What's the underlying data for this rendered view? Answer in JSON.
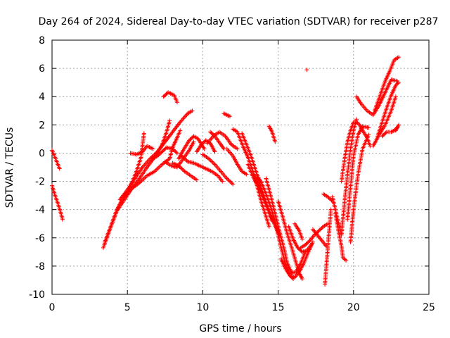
{
  "chart_data": {
    "type": "scatter",
    "title": "Day 264 of 2024, Sidereal Day-to-day VTEC variation (SDTVAR) for receiver p287",
    "xlabel": "GPS time / hours",
    "ylabel": "SDTVAR / TECUs",
    "xlim": [
      0,
      25
    ],
    "ylim": [
      -10,
      8
    ],
    "xticks": [
      0,
      5,
      10,
      15,
      20,
      25
    ],
    "yticks": [
      -10,
      -8,
      -6,
      -4,
      -2,
      0,
      2,
      4,
      6,
      8
    ],
    "grid": true,
    "marker": "+",
    "color": "#ff0000",
    "tracks": [
      {
        "x": [
          0.0,
          0.2,
          0.5
        ],
        "y": [
          0.2,
          -0.3,
          -1.1
        ]
      },
      {
        "x": [
          0.0,
          0.2,
          0.4,
          0.6,
          0.7
        ],
        "y": [
          -2.3,
          -3.0,
          -3.6,
          -4.3,
          -4.7
        ]
      },
      {
        "x": [
          3.4,
          3.7,
          4.0,
          4.3,
          4.6,
          5.0,
          5.3,
          5.6,
          5.9,
          6.1
        ],
        "y": [
          -6.7,
          -5.8,
          -4.9,
          -4.0,
          -3.4,
          -2.8,
          -2.1,
          -1.3,
          -0.3,
          1.4
        ]
      },
      {
        "x": [
          3.5,
          3.9,
          4.3,
          4.8,
          5.3,
          5.8,
          6.3,
          6.8,
          7.3,
          7.6,
          7.8
        ],
        "y": [
          -6.3,
          -5.2,
          -4.1,
          -3.3,
          -2.5,
          -1.8,
          -1.0,
          -0.3,
          0.6,
          1.5,
          2.3
        ]
      },
      {
        "x": [
          4.5,
          5.0,
          5.5,
          6.0,
          6.5,
          7.0,
          7.5,
          8.0,
          8.5,
          9.0,
          9.3
        ],
        "y": [
          -3.3,
          -2.6,
          -1.8,
          -1.0,
          -0.4,
          0.1,
          0.8,
          1.5,
          2.2,
          2.8,
          3.0
        ]
      },
      {
        "x": [
          4.8,
          5.3,
          5.8,
          6.3,
          6.8,
          7.3,
          7.8,
          8.0,
          8.3,
          8.5
        ],
        "y": [
          -3.0,
          -2.5,
          -2.1,
          -1.6,
          -1.3,
          -0.8,
          -0.4,
          0.4,
          1.1,
          1.6
        ]
      },
      {
        "x": [
          5.2,
          5.6,
          6.0,
          6.3,
          6.7
        ],
        "y": [
          0.0,
          -0.1,
          0.1,
          0.5,
          0.3
        ]
      },
      {
        "x": [
          6.6,
          7.0,
          7.3,
          7.6,
          8.0,
          8.3
        ],
        "y": [
          -0.4,
          -0.2,
          0.1,
          0.4,
          0.3,
          0.0
        ]
      },
      {
        "x": [
          7.4,
          7.7,
          8.1,
          8.3
        ],
        "y": [
          4.0,
          4.3,
          4.1,
          3.6
        ]
      },
      {
        "x": [
          7.5,
          7.9,
          8.3,
          8.7,
          9.1,
          9.4
        ],
        "y": [
          -0.6,
          -0.9,
          -1.0,
          -0.4,
          0.2,
          0.8
        ]
      },
      {
        "x": [
          8.4,
          8.7,
          9.1,
          9.4,
          9.7,
          10.1
        ],
        "y": [
          -0.4,
          0.2,
          0.9,
          1.2,
          1.0,
          0.3
        ]
      },
      {
        "x": [
          8.0,
          8.4,
          8.8,
          9.2,
          9.6
        ],
        "y": [
          -0.7,
          -0.9,
          -1.3,
          -1.6,
          -1.9
        ]
      },
      {
        "x": [
          8.6,
          9.0,
          9.4,
          9.8,
          10.2,
          10.6,
          11.0,
          11.3
        ],
        "y": [
          -0.2,
          -0.6,
          -0.7,
          -0.9,
          -1.1,
          -1.3,
          -1.6,
          -2.0
        ]
      },
      {
        "x": [
          9.6,
          9.9,
          10.2,
          10.5,
          10.8
        ],
        "y": [
          0.1,
          0.6,
          0.9,
          0.7,
          0.1
        ]
      },
      {
        "x": [
          10.0,
          10.4,
          10.8,
          11.2,
          11.6,
          12.0
        ],
        "y": [
          -0.1,
          -0.4,
          -0.8,
          -1.3,
          -1.8,
          -2.2
        ]
      },
      {
        "x": [
          10.3,
          10.7,
          11.1,
          11.5,
          11.9,
          12.3
        ],
        "y": [
          0.7,
          1.2,
          1.5,
          1.2,
          0.6,
          0.3
        ]
      },
      {
        "x": [
          10.5,
          10.8,
          11.2,
          11.4
        ],
        "y": [
          1.5,
          1.2,
          0.6,
          0.3
        ]
      },
      {
        "x": [
          11.4,
          11.6,
          11.8
        ],
        "y": [
          2.8,
          2.7,
          2.6
        ]
      },
      {
        "x": [
          11.6,
          12.0,
          12.3,
          12.6,
          12.9
        ],
        "y": [
          0.3,
          -0.2,
          -0.8,
          -1.3,
          -1.5
        ]
      },
      {
        "x": [
          12.0,
          12.3,
          12.7,
          13.0,
          13.3,
          13.6,
          13.9,
          14.2,
          14.4
        ],
        "y": [
          1.7,
          1.5,
          0.4,
          -0.3,
          -1.2,
          -2.3,
          -3.5,
          -4.5,
          -5.2
        ]
      },
      {
        "x": [
          12.6,
          12.9,
          13.2,
          13.5,
          13.8,
          14.1,
          14.4,
          14.6
        ],
        "y": [
          1.4,
          0.6,
          -0.2,
          -1.2,
          -2.2,
          -3.2,
          -4.2,
          -4.8
        ]
      },
      {
        "x": [
          13.0,
          13.3,
          13.7,
          14.0,
          14.4,
          14.8,
          15.0
        ],
        "y": [
          -0.8,
          -1.6,
          -2.4,
          -3.2,
          -4.2,
          -5.1,
          -5.5
        ]
      },
      {
        "x": [
          13.4,
          13.7,
          14.0,
          14.3,
          14.6,
          14.9,
          15.1
        ],
        "y": [
          -1.5,
          -2.2,
          -3.0,
          -3.8,
          -4.6,
          -5.4,
          -5.8
        ]
      },
      {
        "x": [
          13.6,
          13.9,
          14.2,
          14.5,
          14.8,
          15.0,
          15.2,
          15.4,
          15.6,
          15.8,
          16.0
        ],
        "y": [
          -1.6,
          -2.1,
          -2.9,
          -3.8,
          -4.8,
          -5.8,
          -6.7,
          -7.5,
          -8.2,
          -8.7,
          -8.9
        ]
      },
      {
        "x": [
          14.2,
          14.5,
          14.8,
          15.1,
          15.4,
          15.6,
          15.9,
          16.2,
          16.5,
          16.8
        ],
        "y": [
          -1.8,
          -3.0,
          -4.3,
          -5.6,
          -6.8,
          -7.8,
          -8.5,
          -8.4,
          -7.8,
          -7.0
        ]
      },
      {
        "x": [
          14.4,
          14.6,
          14.8
        ],
        "y": [
          1.9,
          1.5,
          0.8
        ]
      },
      {
        "x": [
          15.0,
          15.3,
          15.6,
          15.9,
          16.2,
          16.4,
          16.6
        ],
        "y": [
          -3.4,
          -4.5,
          -5.7,
          -6.7,
          -7.8,
          -8.5,
          -8.9
        ]
      },
      {
        "x": [
          15.2,
          15.5,
          15.8,
          16.1,
          16.4,
          16.7,
          17.0,
          17.3
        ],
        "y": [
          -7.5,
          -8.2,
          -8.7,
          -8.8,
          -8.4,
          -7.8,
          -7.0,
          -6.3
        ]
      },
      {
        "x": [
          15.7,
          16.0,
          16.3,
          16.6,
          16.9,
          17.2
        ],
        "y": [
          -5.2,
          -6.1,
          -6.7,
          -7.0,
          -6.9,
          -6.5
        ]
      },
      {
        "x": [
          16.1,
          16.4,
          16.6
        ],
        "y": [
          -5.0,
          -5.5,
          -6.1
        ]
      },
      {
        "x": [
          16.5,
          16.8,
          17.1,
          17.4,
          17.7,
          18.0,
          18.3
        ],
        "y": [
          -6.7,
          -6.5,
          -6.2,
          -5.8,
          -5.5,
          -5.2,
          -5.0
        ]
      },
      {
        "x": [
          17.3,
          17.6,
          17.9,
          18.2
        ],
        "y": [
          -5.4,
          -5.8,
          -6.2,
          -6.6
        ]
      },
      {
        "x": [
          16.9
        ],
        "y": [
          5.9
        ]
      },
      {
        "x": [
          18.1,
          18.2,
          18.3,
          18.4,
          18.5
        ],
        "y": [
          -9.3,
          -8.0,
          -6.6,
          -5.3,
          -4.0
        ]
      },
      {
        "x": [
          18.0,
          18.3,
          18.6
        ],
        "y": [
          -2.9,
          -3.1,
          -3.4
        ]
      },
      {
        "x": [
          18.6,
          18.9,
          19.2,
          19.4,
          19.6,
          19.8,
          20.0,
          20.2
        ],
        "y": [
          -3.1,
          -4.5,
          -5.8,
          -3.5,
          -1.5,
          0.3,
          1.6,
          2.4
        ]
      },
      {
        "x": [
          18.8,
          19.0,
          19.2,
          19.3,
          19.5
        ],
        "y": [
          -4.3,
          -5.5,
          -6.6,
          -7.4,
          -7.6
        ]
      },
      {
        "x": [
          19.2,
          19.4,
          19.6,
          19.8,
          20.0,
          20.2,
          20.4,
          20.6,
          20.9,
          21.1
        ],
        "y": [
          -2.0,
          -0.5,
          0.8,
          1.6,
          2.2,
          2.2,
          2.0,
          1.6,
          1.1,
          0.5
        ]
      },
      {
        "x": [
          19.6,
          19.8,
          20.0,
          20.3,
          20.6,
          21.0
        ],
        "y": [
          -4.7,
          -2.4,
          -0.2,
          1.3,
          1.9,
          1.8
        ]
      },
      {
        "x": [
          19.8,
          20.0,
          20.3,
          20.6,
          21.0
        ],
        "y": [
          -6.3,
          -4.0,
          -1.5,
          0.3,
          1.3
        ]
      },
      {
        "x": [
          20.2,
          20.5,
          20.9,
          21.3,
          21.7,
          22.1,
          22.5,
          22.9
        ],
        "y": [
          4.0,
          3.5,
          3.0,
          2.7,
          3.4,
          4.3,
          5.2,
          5.1
        ]
      },
      {
        "x": [
          21.4,
          21.8,
          22.1,
          22.4,
          22.7,
          23.0
        ],
        "y": [
          3.0,
          4.2,
          5.1,
          5.8,
          6.6,
          6.8
        ]
      },
      {
        "x": [
          21.6,
          21.9,
          22.2,
          22.5,
          22.8,
          23.0
        ],
        "y": [
          1.2,
          2.2,
          3.2,
          4.1,
          4.8,
          5.0
        ]
      },
      {
        "x": [
          21.3,
          21.7,
          22.1,
          22.5,
          22.8
        ],
        "y": [
          0.5,
          1.3,
          2.0,
          3.0,
          4.0
        ]
      },
      {
        "x": [
          21.9,
          22.2,
          22.5,
          22.7,
          22.9
        ],
        "y": [
          1.2,
          1.5,
          1.5,
          1.6,
          1.8
        ]
      },
      {
        "x": [
          22.8,
          23.0
        ],
        "y": [
          1.6,
          2.0
        ]
      }
    ]
  }
}
